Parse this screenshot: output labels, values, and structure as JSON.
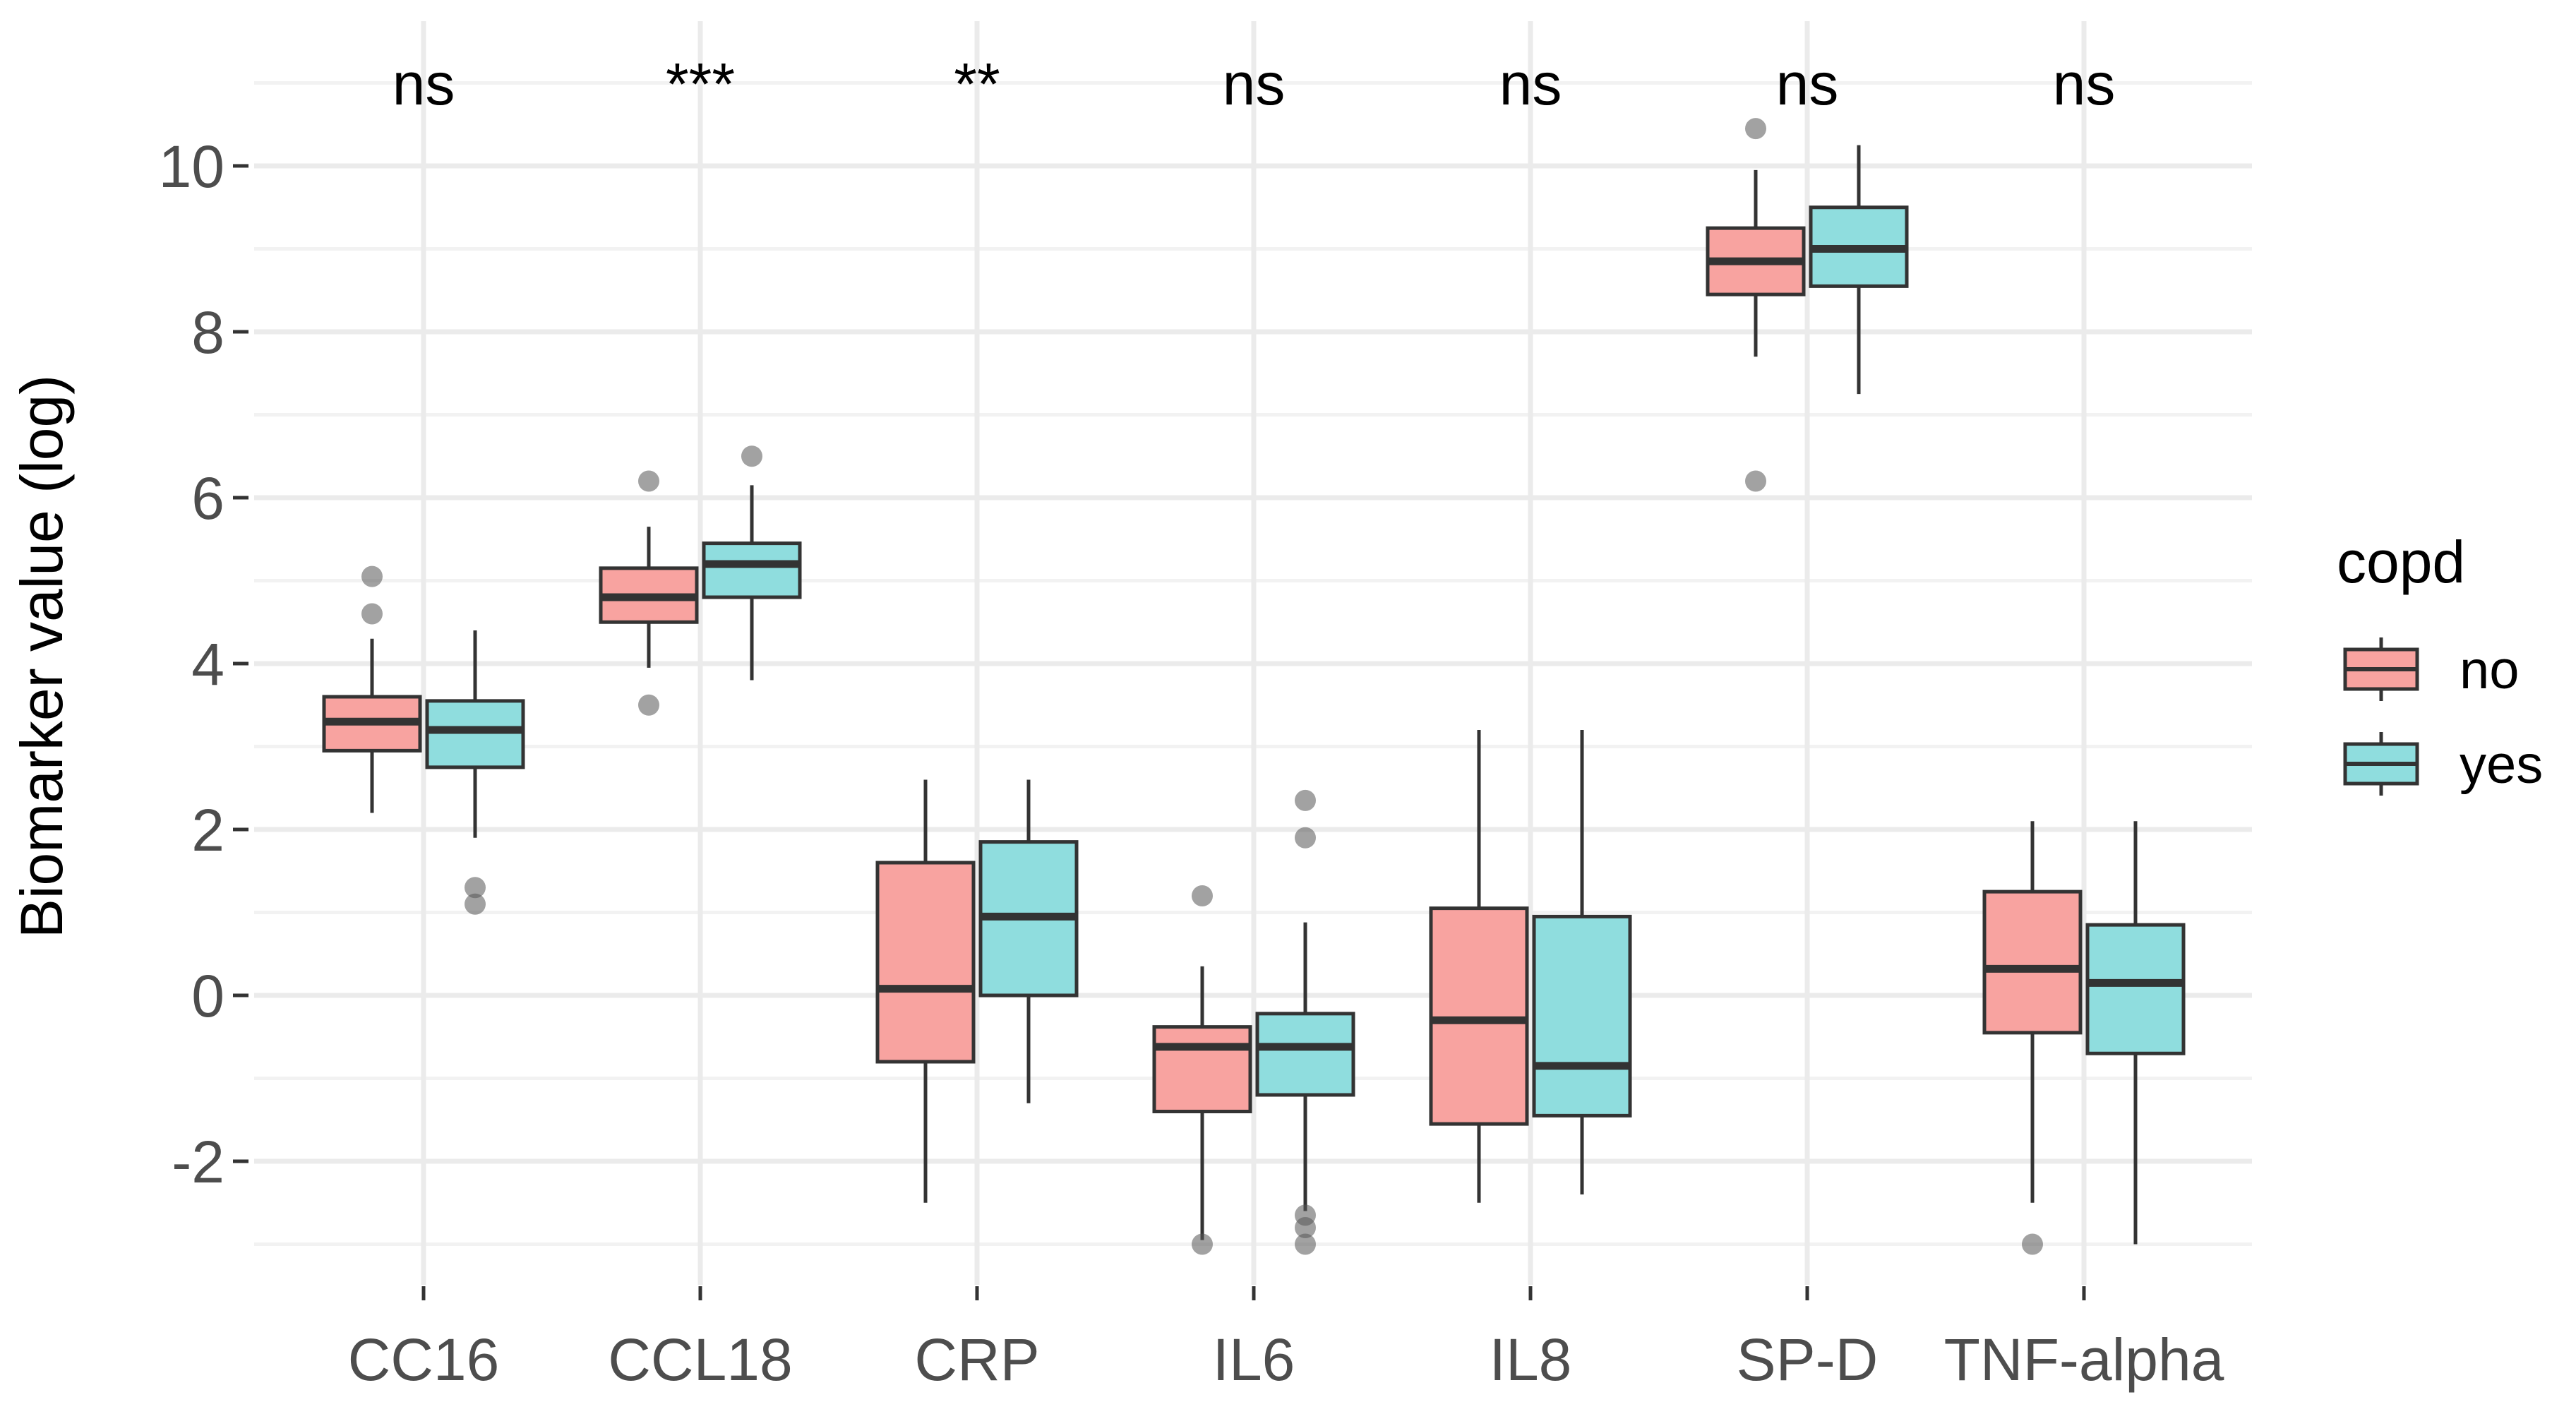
{
  "chart_data": {
    "type": "boxplot",
    "title": "",
    "xlabel": "",
    "ylabel": "Biomarker value (log)",
    "ylim": [
      -3.3,
      11.1
    ],
    "yticks": [
      -2,
      0,
      2,
      4,
      6,
      8,
      10
    ],
    "ytick_labels": [
      "-2",
      "0",
      "2",
      "4",
      "6",
      "8",
      "10"
    ],
    "categories": [
      "CC16",
      "CCL18",
      "CRP",
      "IL6",
      "IL8",
      "SP-D",
      "TNF-alpha"
    ],
    "significance": [
      "ns",
      "***",
      "**",
      "ns",
      "ns",
      "ns",
      "ns"
    ],
    "legend": {
      "title": "copd",
      "position": "right",
      "entries": [
        {
          "name": "no",
          "color": "#F8A3A0"
        },
        {
          "name": "yes",
          "color": "#8FDDDE"
        }
      ]
    },
    "colors": {
      "no": "#F8A3A0",
      "yes": "#8FDDDE",
      "box_border": "#333333",
      "median": "#333333",
      "outlier": "#555555",
      "grid": "#ebebeb"
    },
    "series": [
      {
        "name": "no",
        "boxes": [
          {
            "category": "CC16",
            "whisker_low": 2.2,
            "q1": 2.95,
            "median": 3.3,
            "q3": 3.6,
            "whisker_high": 4.3,
            "outliers": [
              4.6,
              5.05
            ]
          },
          {
            "category": "CCL18",
            "whisker_low": 3.95,
            "q1": 4.5,
            "median": 4.8,
            "q3": 5.15,
            "whisker_high": 5.65,
            "outliers": [
              3.5,
              6.2
            ]
          },
          {
            "category": "CRP",
            "whisker_low": -2.5,
            "q1": -0.8,
            "median": 0.08,
            "q3": 1.6,
            "whisker_high": 2.6,
            "outliers": []
          },
          {
            "category": "IL6",
            "whisker_low": -2.95,
            "q1": -1.4,
            "median": -0.62,
            "q3": -0.38,
            "whisker_high": 0.35,
            "outliers": [
              1.2,
              -3.0
            ]
          },
          {
            "category": "IL8",
            "whisker_low": -2.5,
            "q1": -1.55,
            "median": -0.3,
            "q3": 1.05,
            "whisker_high": 3.2,
            "outliers": []
          },
          {
            "category": "SP-D",
            "whisker_low": 7.7,
            "q1": 8.45,
            "median": 8.85,
            "q3": 9.25,
            "whisker_high": 9.95,
            "outliers": [
              10.45,
              6.2
            ]
          },
          {
            "category": "TNF-alpha",
            "whisker_low": -2.5,
            "q1": -0.45,
            "median": 0.32,
            "q3": 1.25,
            "whisker_high": 2.1,
            "outliers": [
              -3.0
            ]
          }
        ]
      },
      {
        "name": "yes",
        "boxes": [
          {
            "category": "CC16",
            "whisker_low": 1.9,
            "q1": 2.75,
            "median": 3.2,
            "q3": 3.55,
            "whisker_high": 4.4,
            "outliers": [
              1.3,
              1.1
            ]
          },
          {
            "category": "CCL18",
            "whisker_low": 3.8,
            "q1": 4.8,
            "median": 5.2,
            "q3": 5.45,
            "whisker_high": 6.15,
            "outliers": [
              6.5
            ]
          },
          {
            "category": "CRP",
            "whisker_low": -1.3,
            "q1": 0.0,
            "median": 0.95,
            "q3": 1.85,
            "whisker_high": 2.6,
            "outliers": []
          },
          {
            "category": "IL6",
            "whisker_low": -2.6,
            "q1": -1.2,
            "median": -0.62,
            "q3": -0.22,
            "whisker_high": 0.88,
            "outliers": [
              2.35,
              1.9,
              -2.65,
              -2.8,
              -3.0
            ]
          },
          {
            "category": "IL8",
            "whisker_low": -2.4,
            "q1": -1.45,
            "median": -0.85,
            "q3": 0.95,
            "whisker_high": 3.2,
            "outliers": []
          },
          {
            "category": "SP-D",
            "whisker_low": 7.25,
            "q1": 8.55,
            "median": 9.0,
            "q3": 9.5,
            "whisker_high": 10.25,
            "outliers": []
          },
          {
            "category": "TNF-alpha",
            "whisker_low": -3.0,
            "q1": -0.7,
            "median": 0.15,
            "q3": 0.85,
            "whisker_high": 2.1,
            "outliers": []
          }
        ]
      }
    ]
  }
}
